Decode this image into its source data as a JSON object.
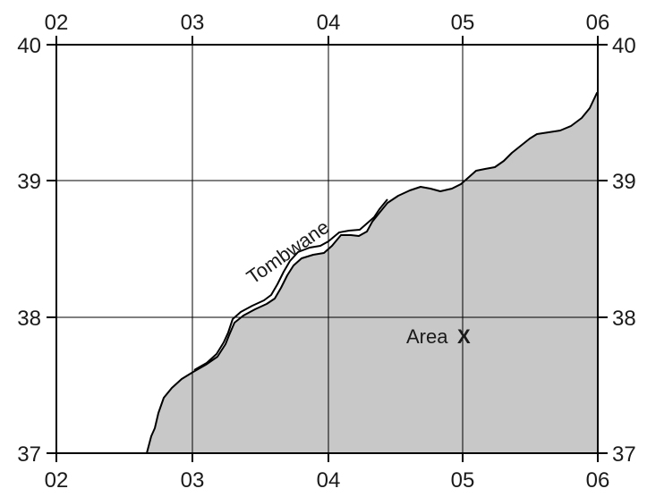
{
  "map": {
    "x_ticks": [
      "02",
      "03",
      "04",
      "05",
      "06"
    ],
    "y_ticks": [
      "40",
      "39",
      "38",
      "37"
    ],
    "road_label": "Tombwane",
    "area_label": "Area",
    "area_letter": "X",
    "colors": {
      "land_fill": "#c8c8c8",
      "line": "#000000",
      "grid": "#000000",
      "background": "#ffffff"
    }
  }
}
